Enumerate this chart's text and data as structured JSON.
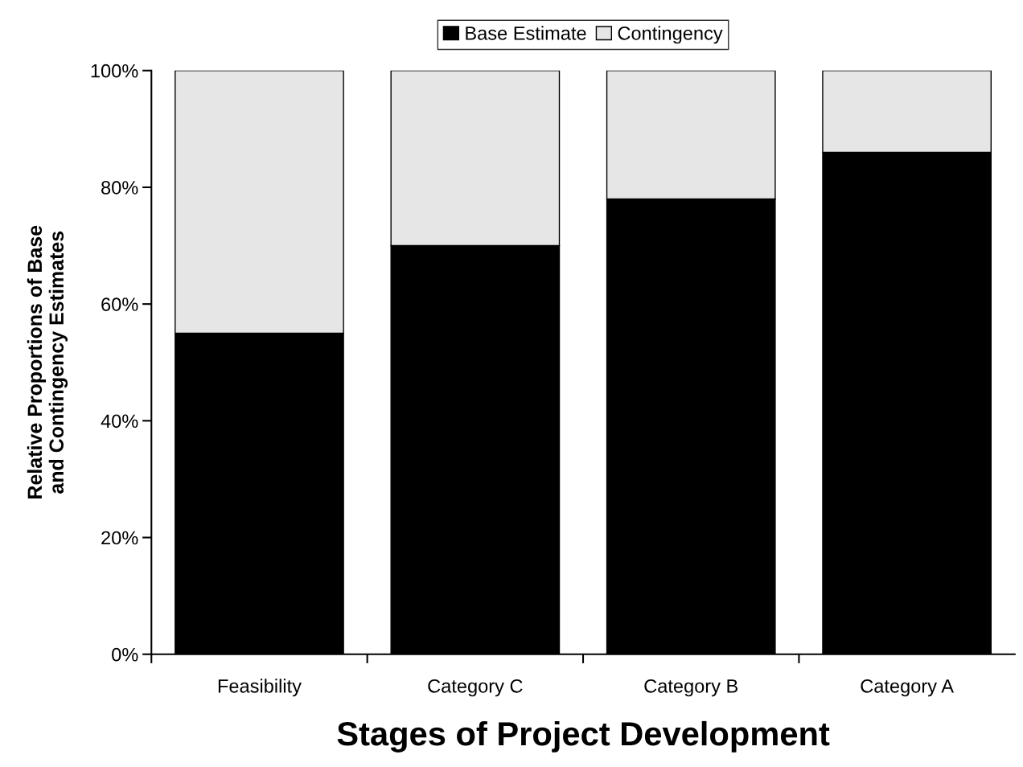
{
  "chart_data": {
    "type": "bar",
    "stacked": true,
    "xlabel": "Stages of Project Development",
    "ylabel": "Relative Proportions of Base\nand Contingency Estimates",
    "categories": [
      "Feasibility",
      "Category C",
      "Category B",
      "Category A"
    ],
    "series": [
      {
        "name": "Base Estimate",
        "color": "#000000",
        "values": [
          55,
          70,
          78,
          86
        ]
      },
      {
        "name": "Contingency",
        "color": "#e6e6e6",
        "values": [
          45,
          30,
          22,
          14
        ]
      }
    ],
    "ylim": [
      0,
      100
    ],
    "yticks": [
      {
        "value": 0,
        "label": "0%"
      },
      {
        "value": 20,
        "label": "20%"
      },
      {
        "value": 40,
        "label": "40%"
      },
      {
        "value": 60,
        "label": "60%"
      },
      {
        "value": 80,
        "label": "80%"
      },
      {
        "value": 100,
        "label": "100%"
      }
    ],
    "grid": false,
    "legend": "top"
  }
}
